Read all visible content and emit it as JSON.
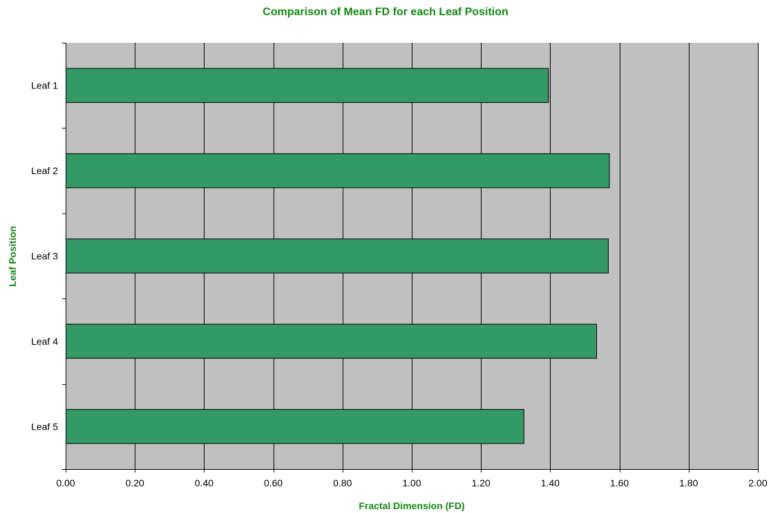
{
  "chart_data": {
    "type": "bar",
    "orientation": "horizontal",
    "title": "Comparison of Mean FD for each Leaf Position",
    "xlabel": "Fractal Dimension (FD)",
    "ylabel": "Leaf Position",
    "categories": [
      "Leaf 1",
      "Leaf 2",
      "Leaf 3",
      "Leaf 4",
      "Leaf 5"
    ],
    "values": [
      1.394,
      1.57,
      1.567,
      1.533,
      1.323
    ],
    "xlim": [
      0,
      2.0
    ],
    "xticks": [
      "0.00",
      "0.20",
      "0.40",
      "0.60",
      "0.80",
      "1.00",
      "1.20",
      "1.40",
      "1.60",
      "1.80",
      "2.00"
    ],
    "grid": true,
    "legend": "none",
    "colors": {
      "bar": "#339966",
      "plot_background": "#c0c0c0",
      "title": "#108a10"
    }
  }
}
